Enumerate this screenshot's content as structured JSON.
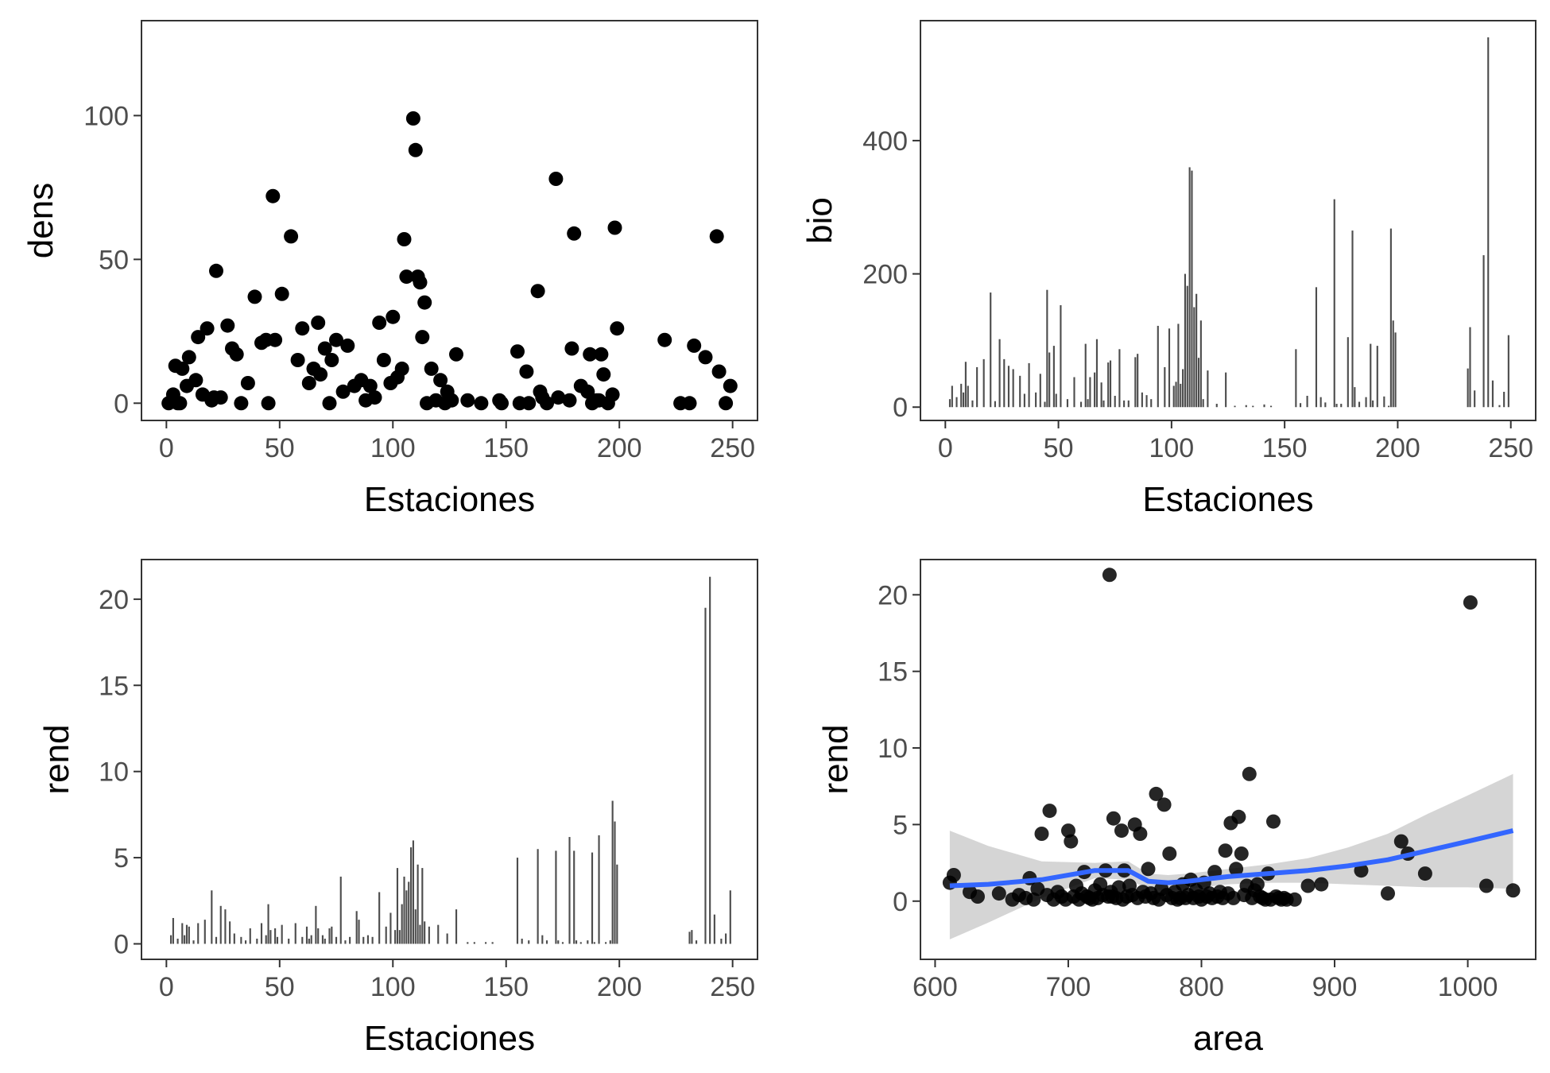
{
  "chart_data": [
    {
      "type": "scatter",
      "xlabel": "Estaciones",
      "ylabel": "dens",
      "xlim": [
        -11,
        261
      ],
      "ylim": [
        -6,
        133
      ],
      "xticks": [
        "0",
        "50",
        "100",
        "150",
        "200",
        "250"
      ],
      "yticks": [
        "0",
        "50",
        "100"
      ],
      "grid": false,
      "point_color": "#000000",
      "x": [
        1,
        3,
        4,
        5,
        6,
        7,
        9,
        10,
        13,
        14,
        16,
        18,
        20,
        21,
        22,
        24,
        27,
        29,
        31,
        33,
        36,
        39,
        42,
        44,
        45,
        47,
        48,
        51,
        55,
        58,
        60,
        63,
        65,
        67,
        68,
        70,
        72,
        73,
        75,
        78,
        80,
        83,
        86,
        88,
        90,
        92,
        94,
        96,
        99,
        100,
        102,
        104,
        105,
        106,
        109,
        110,
        111,
        112,
        113,
        114,
        115,
        117,
        119,
        121,
        123,
        124,
        126,
        128,
        133,
        139,
        147,
        148,
        155,
        156,
        159,
        160,
        164,
        165,
        166,
        168,
        172,
        173,
        178,
        179,
        180,
        183,
        186,
        187,
        188,
        190,
        191,
        192,
        193,
        195,
        197,
        198,
        199,
        220,
        227,
        231,
        233,
        238,
        243,
        244,
        247,
        249
      ],
      "y": [
        0,
        3,
        13,
        0,
        0,
        12,
        6,
        16,
        8,
        23,
        3,
        26,
        1,
        2,
        46,
        2,
        27,
        19,
        17,
        0,
        7,
        37,
        21,
        22,
        0,
        72,
        22,
        38,
        58,
        15,
        26,
        7,
        12,
        28,
        10,
        19,
        0,
        15,
        22,
        4,
        20,
        6,
        8,
        1,
        6,
        2,
        28,
        15,
        7,
        30,
        9,
        12,
        57,
        44,
        99,
        88,
        44,
        42,
        23,
        35,
        0,
        12,
        1,
        8,
        0,
        4,
        1,
        17,
        1,
        0,
        1,
        0,
        18,
        0,
        11,
        0,
        39,
        4,
        2,
        0,
        78,
        2,
        1,
        19,
        59,
        6,
        4,
        17,
        0,
        1,
        1,
        17,
        10,
        0,
        3,
        61,
        26,
        22,
        0,
        0,
        20,
        16,
        58,
        11,
        0,
        6
      ],
      "size_values": []
    },
    {
      "type": "bar",
      "xlabel": "Estaciones",
      "ylabel": "bio",
      "xlim": [
        -11,
        261
      ],
      "ylim": [
        -20,
        580
      ],
      "xticks": [
        "0",
        "50",
        "100",
        "150",
        "200",
        "250"
      ],
      "yticks": [
        "0",
        "200",
        "400"
      ],
      "grid": false,
      "bar_color": "#4d4d4d",
      "x": [
        2,
        3,
        5,
        7,
        8,
        9,
        10,
        12,
        14,
        17,
        20,
        22,
        24,
        26,
        28,
        30,
        33,
        35,
        37,
        40,
        42,
        44,
        45,
        46,
        48,
        49,
        51,
        54,
        57,
        60,
        62,
        63,
        64,
        66,
        67,
        69,
        70,
        72,
        73,
        75,
        77,
        79,
        81,
        84,
        85,
        87,
        89,
        91,
        94,
        97,
        99,
        101,
        102,
        103,
        104,
        105,
        106,
        107,
        108,
        109,
        110,
        111,
        112,
        113,
        114,
        116,
        120,
        124,
        128,
        133,
        136,
        141,
        144,
        155,
        157,
        160,
        164,
        166,
        168,
        172,
        173,
        175,
        178,
        180,
        181,
        183,
        186,
        188,
        189,
        191,
        194,
        196,
        197,
        198,
        199,
        231,
        232,
        234,
        238,
        240,
        242,
        245,
        247,
        249
      ],
      "values": [
        12,
        32,
        15,
        35,
        22,
        68,
        32,
        10,
        60,
        72,
        172,
        9,
        102,
        72,
        62,
        57,
        47,
        20,
        66,
        22,
        50,
        8,
        176,
        82,
        92,
        20,
        153,
        12,
        45,
        8,
        95,
        12,
        45,
        52,
        102,
        37,
        10,
        67,
        70,
        17,
        87,
        10,
        10,
        75,
        80,
        22,
        18,
        12,
        122,
        60,
        118,
        32,
        38,
        125,
        35,
        57,
        200,
        182,
        360,
        355,
        150,
        170,
        74,
        130,
        12,
        55,
        5,
        52,
        2,
        3,
        2,
        4,
        2,
        87,
        6,
        17,
        180,
        15,
        7,
        312,
        5,
        5,
        105,
        265,
        30,
        8,
        15,
        95,
        10,
        92,
        16,
        2,
        268,
        130,
        112,
        58,
        120,
        25,
        228,
        555,
        40,
        3,
        23,
        108
      ]
    },
    {
      "type": "bar",
      "xlabel": "Estaciones",
      "ylabel": "rend",
      "xlim": [
        -11,
        261
      ],
      "ylim": [
        -0.9,
        22.3
      ],
      "xticks": [
        "0",
        "50",
        "100",
        "150",
        "200",
        "250"
      ],
      "yticks": [
        "0",
        "5",
        "10",
        "15",
        "20"
      ],
      "grid": false,
      "bar_color": "#4d4d4d",
      "x": [
        2,
        3,
        5,
        7,
        8,
        9,
        10,
        12,
        14,
        17,
        20,
        22,
        24,
        26,
        28,
        30,
        33,
        35,
        37,
        40,
        42,
        44,
        45,
        46,
        48,
        49,
        51,
        54,
        57,
        60,
        62,
        63,
        64,
        66,
        67,
        69,
        70,
        72,
        73,
        75,
        77,
        79,
        81,
        84,
        85,
        87,
        89,
        91,
        94,
        97,
        99,
        101,
        102,
        103,
        104,
        105,
        106,
        107,
        108,
        109,
        110,
        111,
        112,
        113,
        114,
        116,
        120,
        124,
        128,
        133,
        136,
        141,
        144,
        155,
        157,
        160,
        164,
        166,
        168,
        172,
        173,
        175,
        178,
        180,
        181,
        183,
        186,
        188,
        189,
        191,
        194,
        196,
        197,
        198,
        199,
        231,
        232,
        234,
        238,
        240,
        242,
        245,
        247,
        249
      ],
      "values": [
        0.5,
        1.5,
        0.3,
        1.2,
        0.5,
        1.1,
        1.0,
        0.2,
        1.2,
        1.4,
        3.1,
        0.4,
        2.2,
        2.0,
        1.3,
        0.6,
        0.4,
        0.2,
        0.9,
        0.3,
        1.2,
        0.5,
        2.3,
        0.8,
        0.9,
        0.4,
        1.1,
        0.3,
        1.2,
        0.4,
        1.0,
        0.3,
        0.5,
        2.2,
        0.9,
        0.5,
        0.3,
        0.9,
        1.0,
        0.4,
        3.9,
        0.2,
        0.4,
        1.9,
        1.4,
        0.4,
        0.5,
        0.4,
        3.0,
        1.0,
        1.8,
        0.8,
        4.4,
        0.8,
        2.3,
        3.9,
        3.1,
        3.6,
        5.6,
        6.0,
        2.0,
        4.6,
        1.1,
        4.4,
        1.3,
        1.0,
        1.1,
        0.6,
        2.0,
        0.1,
        0.1,
        0.1,
        0.1,
        5.0,
        0.3,
        0.2,
        5.5,
        0.5,
        0.2,
        5.4,
        0.2,
        0.1,
        6.2,
        5.4,
        0.2,
        0.1,
        0.2,
        5.3,
        0.1,
        6.3,
        0.1,
        0.2,
        8.3,
        7.1,
        4.6,
        0.7,
        0.8,
        0.2,
        19.5,
        21.3,
        1.7,
        0.3,
        0.6,
        3.1
      ]
    },
    {
      "type": "scatter",
      "xlabel": "area",
      "ylabel": "rend",
      "xlim": [
        589,
        1051
      ],
      "ylim": [
        -3.8,
        22.3
      ],
      "xticks": [
        "600",
        "700",
        "800",
        "900",
        "1000"
      ],
      "yticks": [
        "0",
        "5",
        "10",
        "15",
        "20"
      ],
      "grid": false,
      "point_color": "#000000",
      "x": [
        611,
        614,
        626,
        632,
        648,
        658,
        663,
        668,
        671,
        674,
        677,
        680,
        684,
        686,
        689,
        692,
        695,
        698,
        700,
        702,
        704,
        706,
        708,
        710,
        712,
        714,
        716,
        718,
        720,
        722,
        724,
        726,
        728,
        730,
        731,
        732,
        733,
        734,
        736,
        738,
        740,
        741,
        742,
        744,
        746,
        748,
        750,
        752,
        754,
        756,
        758,
        760,
        762,
        764,
        766,
        768,
        770,
        772,
        774,
        776,
        778,
        780,
        782,
        784,
        786,
        788,
        790,
        792,
        794,
        796,
        798,
        800,
        802,
        804,
        806,
        808,
        810,
        812,
        814,
        816,
        818,
        820,
        822,
        824,
        826,
        828,
        830,
        832,
        834,
        836,
        838,
        840,
        842,
        844,
        846,
        848,
        850,
        852,
        854,
        856,
        858,
        860,
        862,
        864,
        870,
        880,
        890,
        920,
        940,
        950,
        955,
        968,
        1002,
        1014,
        1034
      ],
      "y": [
        1.2,
        1.7,
        0.6,
        0.3,
        0.5,
        0.1,
        0.4,
        0.2,
        1.5,
        0.1,
        0.8,
        4.4,
        0.4,
        5.9,
        0.1,
        0.6,
        0.3,
        0.1,
        4.6,
        3.9,
        0.3,
        1.0,
        0.1,
        0.5,
        1.9,
        0.3,
        0.2,
        0.1,
        0.7,
        0.2,
        1.1,
        0.4,
        2.0,
        0.3,
        21.3,
        0.6,
        0.3,
        5.4,
        0.2,
        0.9,
        4.6,
        0.1,
        2.0,
        0.3,
        1.0,
        0.4,
        5.0,
        0.2,
        4.4,
        0.6,
        0.3,
        2.1,
        0.5,
        0.2,
        7.0,
        0.1,
        0.8,
        6.3,
        0.4,
        3.1,
        0.2,
        0.6,
        0.1,
        0.2,
        1.1,
        0.2,
        0.4,
        1.4,
        0.2,
        0.7,
        0.3,
        0.1,
        1.2,
        0.3,
        0.5,
        0.2,
        1.9,
        0.3,
        0.6,
        0.2,
        3.3,
        0.5,
        5.1,
        0.2,
        2.1,
        5.5,
        3.1,
        0.4,
        1.0,
        8.3,
        0.2,
        0.7,
        1.1,
        0.3,
        0.2,
        0.1,
        1.8,
        0.1,
        5.2,
        0.3,
        0.2,
        0.1,
        0.2,
        0.1,
        0.1,
        1.0,
        1.1,
        2.0,
        0.5,
        3.9,
        3.1,
        1.8,
        19.5,
        1.0,
        0.7
      ],
      "smooth": {
        "color": "#3366ff",
        "band_color": "#bebebe",
        "x": [
          611,
          640,
          680,
          720,
          745,
          760,
          775,
          790,
          820,
          850,
          880,
          910,
          940,
          970,
          1000,
          1034
        ],
        "y": [
          1.0,
          1.1,
          1.4,
          2.0,
          2.0,
          1.3,
          1.2,
          1.3,
          1.6,
          1.8,
          2.0,
          2.3,
          2.7,
          3.3,
          3.9,
          4.6
        ],
        "lower": [
          -2.5,
          -1.4,
          0.2,
          1.5,
          1.4,
          0.8,
          0.7,
          0.8,
          1.1,
          1.2,
          1.2,
          1.1,
          1.0,
          0.9,
          0.9,
          0.8
        ],
        "upper": [
          4.6,
          3.6,
          2.6,
          2.5,
          2.6,
          1.8,
          1.7,
          1.8,
          2.1,
          2.4,
          2.8,
          3.5,
          4.4,
          5.7,
          6.9,
          8.3
        ]
      }
    }
  ]
}
